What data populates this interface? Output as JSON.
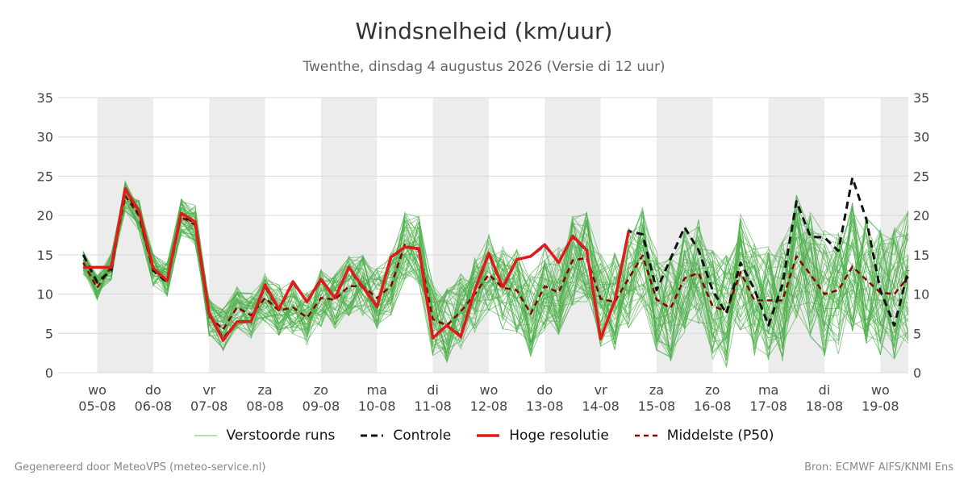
{
  "title": "Windsnelheid (km/uur)",
  "subtitle": "Twenthe, dinsdag  4 augustus 2026 (Versie di 12 uur)",
  "footer_left": "Gegenereerd door MeteoVPS (meteo-service.nl)",
  "footer_right": "Bron: ECMWF AIFS/KNMI Ens",
  "legend": [
    {
      "label": "Verstoorde runs",
      "color": "#4daf4a",
      "style": "thin-solid"
    },
    {
      "label": "Controle",
      "color": "#111111",
      "style": "dashed"
    },
    {
      "label": "Hoge resolutie",
      "color": "#e31a1c",
      "style": "solid"
    },
    {
      "label": "Middelste (P50)",
      "color": "#8b0000",
      "style": "dashed"
    }
  ],
  "chart_data": {
    "type": "line",
    "y_ticks": [
      0,
      5,
      10,
      15,
      20,
      25,
      30,
      35
    ],
    "ylim": [
      0,
      35
    ],
    "xlim_days": [
      -0.7,
      14.5
    ],
    "x_ticks": [
      {
        "day": "wo",
        "date": "05-08"
      },
      {
        "day": "do",
        "date": "06-08"
      },
      {
        "day": "vr",
        "date": "07-08"
      },
      {
        "day": "za",
        "date": "08-08"
      },
      {
        "day": "zo",
        "date": "09-08"
      },
      {
        "day": "ma",
        "date": "10-08"
      },
      {
        "day": "di",
        "date": "11-08"
      },
      {
        "day": "wo",
        "date": "12-08"
      },
      {
        "day": "do",
        "date": "13-08"
      },
      {
        "day": "vr",
        "date": "14-08"
      },
      {
        "day": "za",
        "date": "15-08"
      },
      {
        "day": "zo",
        "date": "16-08"
      },
      {
        "day": "ma",
        "date": "17-08"
      },
      {
        "day": "di",
        "date": "18-08"
      },
      {
        "day": "wo",
        "date": "19-08"
      }
    ],
    "shaded_day_bands": [
      [
        0,
        1
      ],
      [
        2,
        3
      ],
      [
        4,
        5
      ],
      [
        6,
        7
      ],
      [
        8,
        9
      ],
      [
        10,
        11
      ],
      [
        12,
        13
      ],
      [
        14,
        14.5
      ]
    ],
    "series": [
      {
        "name": "Hoge resolutie",
        "color": "#e31a1c",
        "x_days": [
          -0.25,
          0,
          0.25,
          0.5,
          0.75,
          1.0,
          1.25,
          1.5,
          1.75,
          2.0,
          2.25,
          2.5,
          2.75,
          3.0,
          3.25,
          3.5,
          3.75,
          4.0,
          4.25,
          4.5,
          4.75,
          5.0,
          5.25,
          5.5,
          5.75,
          6.0,
          6.25,
          6.5,
          6.75,
          7.0,
          7.25,
          7.5,
          7.75,
          8.0,
          8.25,
          8.5,
          8.75,
          9.0,
          9.25,
          9.5
        ],
        "values": [
          13.4,
          13.4,
          13.4,
          23.4,
          20.5,
          13.3,
          11.7,
          20.3,
          19.2,
          7.6,
          4.1,
          6.5,
          6.5,
          11.2,
          8.1,
          11.6,
          9.0,
          11.9,
          9.5,
          13.4,
          10.9,
          8.4,
          14.7,
          16.0,
          15.8,
          4.4,
          6.0,
          4.6,
          10.5,
          15.2,
          10.9,
          14.4,
          14.8,
          16.3,
          14.0,
          17.4,
          15.6,
          4.3,
          9.1,
          18.0
        ]
      },
      {
        "name": "Controle",
        "color": "#111111",
        "x_days": [
          -0.25,
          0,
          0.25,
          0.5,
          0.75,
          1.0,
          1.25,
          1.5,
          1.75,
          2.0,
          2.25,
          2.5,
          2.75,
          3.0,
          3.25,
          3.5,
          3.75,
          4.0,
          4.25,
          4.5,
          4.75,
          5.0,
          5.25,
          5.5,
          5.75,
          6.0,
          6.25,
          6.5,
          6.75,
          7.0,
          7.25,
          7.5,
          7.75,
          8.0,
          8.25,
          8.5,
          8.75,
          9.0,
          9.25,
          9.5,
          9.75,
          10.0,
          10.25,
          10.5,
          10.75,
          11.0,
          11.25,
          11.5,
          11.75,
          12.0,
          12.25,
          12.5,
          12.75,
          13.0,
          13.25,
          13.5,
          13.75,
          14.0,
          14.25,
          14.5
        ],
        "values": [
          15.0,
          11.5,
          13.0,
          23.5,
          20.0,
          13.0,
          11.5,
          20.2,
          19.0,
          7.5,
          4.3,
          6.5,
          6.5,
          11.0,
          8.0,
          11.5,
          9.0,
          11.8,
          9.5,
          13.3,
          10.8,
          8.5,
          14.6,
          16.0,
          15.7,
          4.5,
          6.0,
          4.7,
          10.5,
          15.1,
          10.8,
          14.4,
          14.8,
          16.2,
          14.0,
          17.3,
          15.5,
          4.4,
          9.0,
          18.0,
          17.6,
          10.5,
          14.5,
          18.5,
          15.6,
          10.5,
          7.5,
          14.0,
          10.6,
          6.0,
          11.2,
          21.8,
          17.3,
          17.2,
          15.5,
          24.8,
          19.5,
          10.5,
          6.0,
          13.0
        ]
      },
      {
        "name": "Middelste (P50)",
        "color": "#8b0000",
        "x_days": [
          -0.25,
          0,
          0.25,
          0.5,
          0.75,
          1.0,
          1.25,
          1.5,
          1.75,
          2.0,
          2.25,
          2.5,
          2.75,
          3.0,
          3.25,
          3.5,
          3.75,
          4.0,
          4.25,
          4.5,
          4.75,
          5.0,
          5.25,
          5.5,
          5.75,
          6.0,
          6.25,
          6.5,
          6.75,
          7.0,
          7.25,
          7.5,
          7.75,
          8.0,
          8.25,
          8.5,
          8.75,
          9.0,
          9.25,
          9.5,
          9.75,
          10.0,
          10.25,
          10.5,
          10.75,
          11.0,
          11.25,
          11.5,
          11.75,
          12.0,
          12.25,
          12.5,
          12.75,
          13.0,
          13.25,
          13.5,
          13.75,
          14.0,
          14.25,
          14.5
        ],
        "values": [
          14.0,
          10.8,
          13.5,
          22.5,
          20.0,
          13.0,
          11.8,
          19.8,
          18.8,
          7.2,
          5.5,
          8.3,
          7.3,
          9.5,
          7.9,
          8.3,
          7.0,
          9.5,
          9.3,
          11.0,
          11.0,
          9.5,
          11.0,
          16.3,
          15.5,
          6.8,
          6.0,
          7.8,
          10.0,
          12.5,
          10.8,
          10.5,
          7.5,
          11.0,
          10.2,
          14.3,
          14.6,
          9.4,
          9.0,
          12.0,
          14.9,
          9.3,
          8.2,
          12.0,
          12.7,
          8.5,
          7.8,
          12.8,
          9.2,
          9.2,
          9.2,
          14.8,
          12.5,
          10.0,
          10.5,
          13.5,
          11.8,
          10.2,
          10.0,
          12.2
        ]
      }
    ],
    "ensemble_color": "#4daf4a",
    "ensemble_members": 50
  }
}
